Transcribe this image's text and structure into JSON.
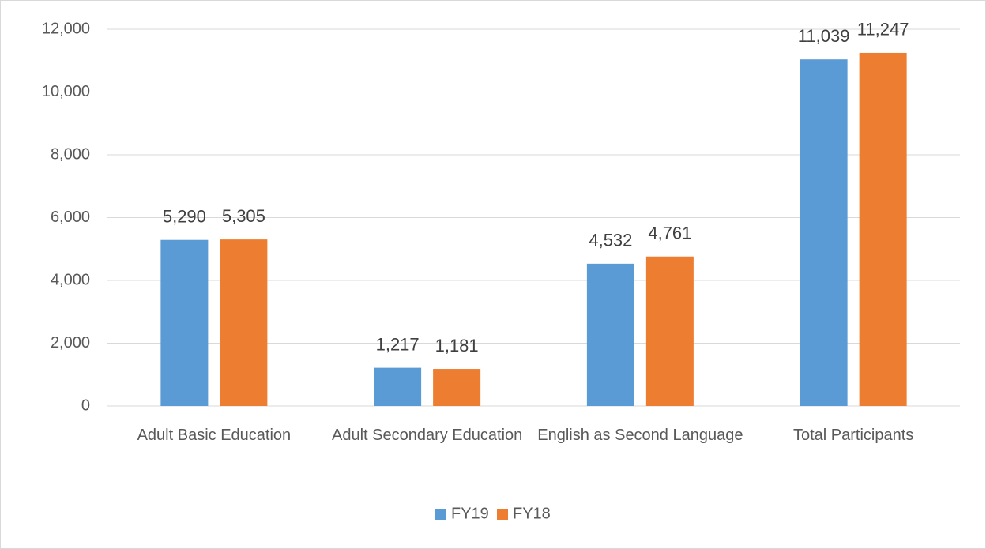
{
  "chart_data": {
    "type": "bar",
    "categories": [
      "Adult Basic Education",
      "Adult Secondary Education",
      "English as Second Language",
      "Total Participants"
    ],
    "series": [
      {
        "name": "FY19",
        "color": "#5b9bd5",
        "values": [
          5290,
          1217,
          4532,
          11039
        ],
        "value_labels": [
          "5,290",
          "1,217",
          "4,532",
          "11,039"
        ]
      },
      {
        "name": "FY18",
        "color": "#ed7d31",
        "values": [
          5305,
          1181,
          4761,
          11247
        ],
        "value_labels": [
          "5,305",
          "1,181",
          "4,761",
          "11,247"
        ]
      }
    ],
    "ylim": [
      0,
      12000
    ],
    "yticks": [
      0,
      {
        "value": 2000,
        "label": "2,000"
      },
      {
        "value": 4000,
        "label": "4,000"
      },
      {
        "value": 6000,
        "label": "6,000"
      },
      {
        "value": 8000,
        "label": "8,000"
      },
      {
        "value": 10000,
        "label": "10,000"
      },
      {
        "value": 12000,
        "label": "12,000"
      }
    ],
    "grid": true,
    "legend": "bottom"
  }
}
